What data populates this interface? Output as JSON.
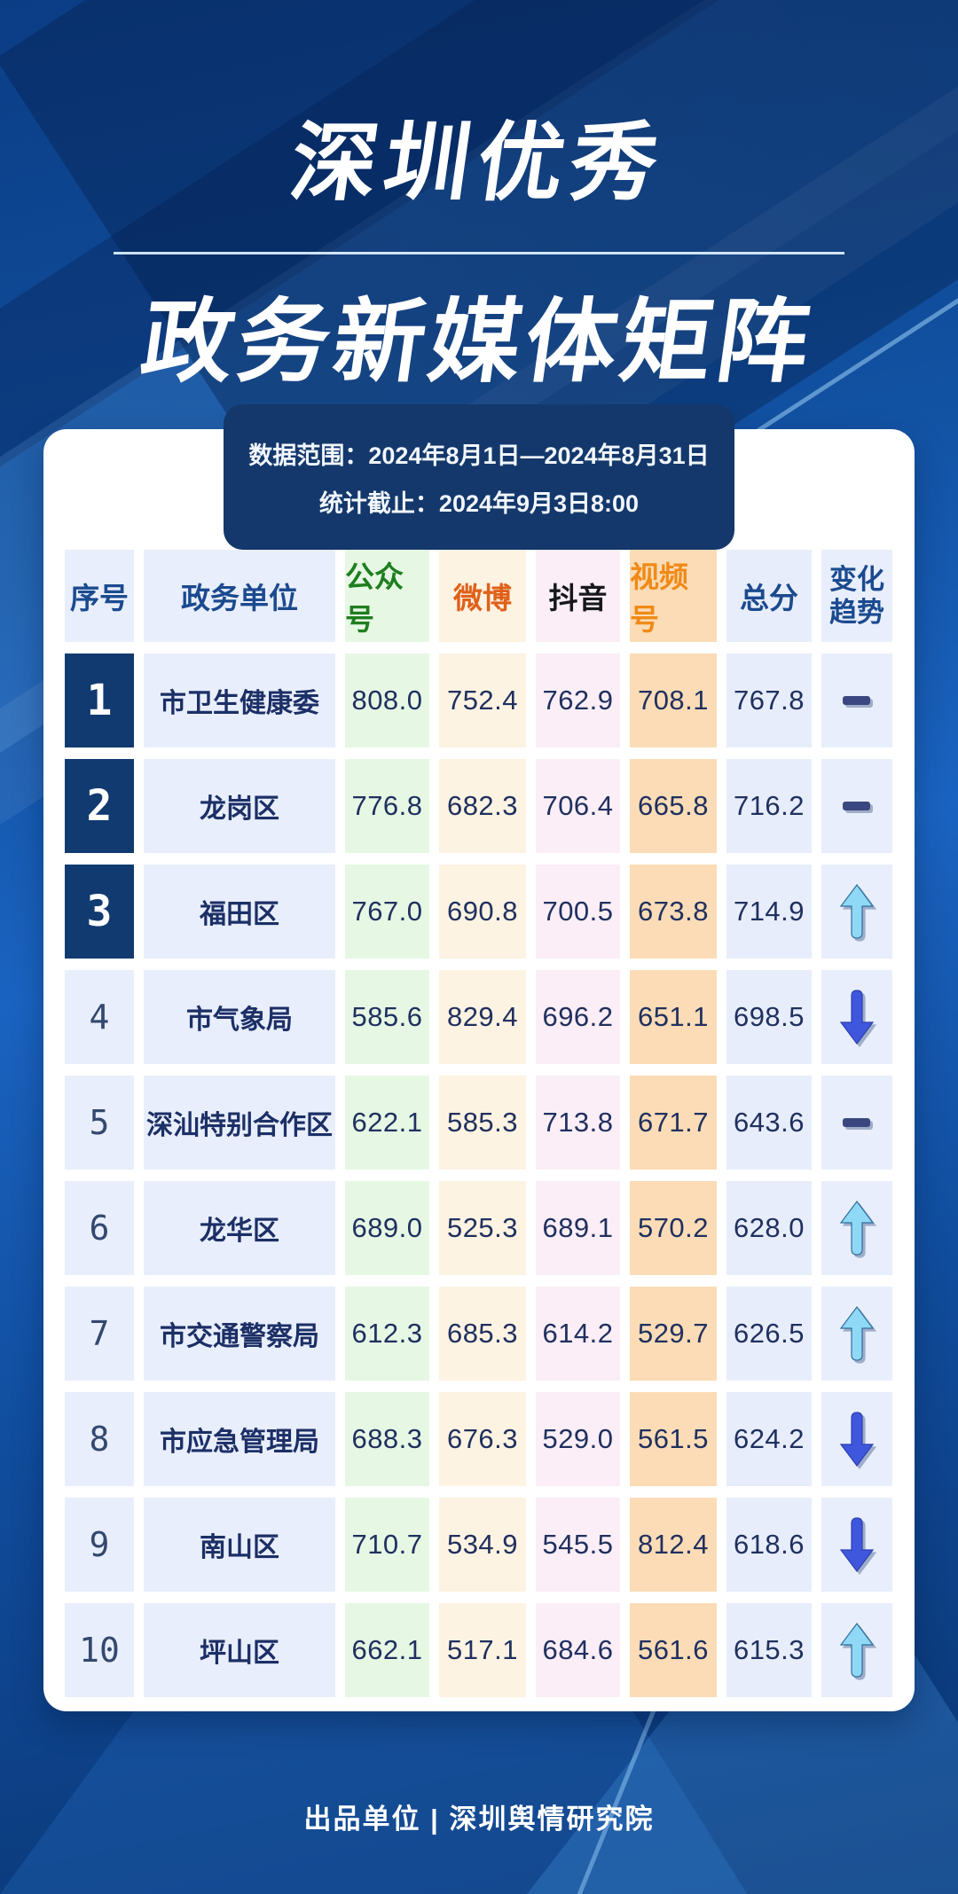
{
  "poster": {
    "title_line1": "深圳优秀",
    "title_line2": "政务新媒体矩阵",
    "date_range_label": "数据范围：2024年8月1日—2024年8月31日",
    "stats_deadline_label": "统计截止：2024年9月3日8:00",
    "footer_text": "出品单位 | 深圳舆情研究院"
  },
  "table": {
    "headers": [
      {
        "label": "序号"
      },
      {
        "label": "政务单位"
      },
      {
        "label": "公众号"
      },
      {
        "label": "微博"
      },
      {
        "label": "抖音"
      },
      {
        "label": "视频号"
      },
      {
        "label": "总分"
      },
      {
        "label": "变化趋势"
      }
    ],
    "rows": [
      {
        "rank": "1",
        "unit": "市卫生健康委",
        "gongzhonghao": "808.0",
        "weibo": "752.4",
        "douyin": "762.9",
        "shipinhao": "708.1",
        "total": "767.8",
        "trend": "flat"
      },
      {
        "rank": "2",
        "unit": "龙岗区",
        "gongzhonghao": "776.8",
        "weibo": "682.3",
        "douyin": "706.4",
        "shipinhao": "665.8",
        "total": "716.2",
        "trend": "flat"
      },
      {
        "rank": "3",
        "unit": "福田区",
        "gongzhonghao": "767.0",
        "weibo": "690.8",
        "douyin": "700.5",
        "shipinhao": "673.8",
        "total": "714.9",
        "trend": "up"
      },
      {
        "rank": "4",
        "unit": "市气象局",
        "gongzhonghao": "585.6",
        "weibo": "829.4",
        "douyin": "696.2",
        "shipinhao": "651.1",
        "total": "698.5",
        "trend": "down"
      },
      {
        "rank": "5",
        "unit": "深汕特别合作区",
        "gongzhonghao": "622.1",
        "weibo": "585.3",
        "douyin": "713.8",
        "shipinhao": "671.7",
        "total": "643.6",
        "trend": "flat"
      },
      {
        "rank": "6",
        "unit": "龙华区",
        "gongzhonghao": "689.0",
        "weibo": "525.3",
        "douyin": "689.1",
        "shipinhao": "570.2",
        "total": "628.0",
        "trend": "up"
      },
      {
        "rank": "7",
        "unit": "市交通警察局",
        "gongzhonghao": "612.3",
        "weibo": "685.3",
        "douyin": "614.2",
        "shipinhao": "529.7",
        "total": "626.5",
        "trend": "up"
      },
      {
        "rank": "8",
        "unit": "市应急管理局",
        "gongzhonghao": "688.3",
        "weibo": "676.3",
        "douyin": "529.0",
        "shipinhao": "561.5",
        "total": "624.2",
        "trend": "down"
      },
      {
        "rank": "9",
        "unit": "南山区",
        "gongzhonghao": "710.7",
        "weibo": "534.9",
        "douyin": "545.5",
        "shipinhao": "812.4",
        "total": "618.6",
        "trend": "down"
      },
      {
        "rank": "10",
        "unit": "坪山区",
        "gongzhonghao": "662.1",
        "weibo": "517.1",
        "douyin": "684.6",
        "shipinhao": "561.6",
        "total": "615.3",
        "trend": "up"
      }
    ],
    "trend_icon_names": {
      "flat": "dash-icon",
      "up": "up-arrow-icon",
      "down": "down-arrow-icon"
    }
  },
  "colors": {
    "background_blue": "#1a63c0",
    "date_box_navy": "#14386b",
    "rank_top_navy": "#113a70",
    "header_blue": "#1b4a8f",
    "gongzhonghao_green": "#1e7e1f",
    "weibo_orange": "#e06019",
    "douyin_black": "#17181d",
    "shipinhao_orange": "#f08a17",
    "value_navy": "#20305f",
    "up_arrow_cyan": "#90d9f6",
    "down_arrow_blue": "#3f57dd",
    "flat_dash_navy": "#3b4780"
  },
  "chart_data": {
    "type": "table",
    "title": "深圳优秀政务新媒体矩阵",
    "annotations": [
      "数据范围：2024年8月1日—2024年8月31日",
      "统计截止：2024年9月3日8:00",
      "出品单位 | 深圳舆情研究院"
    ],
    "columns": [
      "序号",
      "政务单位",
      "公众号",
      "微博",
      "抖音",
      "视频号",
      "总分",
      "变化趋势"
    ],
    "rows": [
      [
        1,
        "市卫生健康委",
        808.0,
        752.4,
        762.9,
        708.1,
        767.8,
        "flat"
      ],
      [
        2,
        "龙岗区",
        776.8,
        682.3,
        706.4,
        665.8,
        716.2,
        "flat"
      ],
      [
        3,
        "福田区",
        767.0,
        690.8,
        700.5,
        673.8,
        714.9,
        "up"
      ],
      [
        4,
        "市气象局",
        585.6,
        829.4,
        696.2,
        651.1,
        698.5,
        "down"
      ],
      [
        5,
        "深汕特别合作区",
        622.1,
        585.3,
        713.8,
        671.7,
        643.6,
        "flat"
      ],
      [
        6,
        "龙华区",
        689.0,
        525.3,
        689.1,
        570.2,
        628.0,
        "up"
      ],
      [
        7,
        "市交通警察局",
        612.3,
        685.3,
        614.2,
        529.7,
        626.5,
        "up"
      ],
      [
        8,
        "市应急管理局",
        688.3,
        676.3,
        529.0,
        561.5,
        624.2,
        "down"
      ],
      [
        9,
        "南山区",
        710.7,
        534.9,
        545.5,
        812.4,
        618.6,
        "down"
      ],
      [
        10,
        "坪山区",
        662.1,
        517.1,
        684.6,
        561.6,
        615.3,
        "up"
      ]
    ]
  }
}
